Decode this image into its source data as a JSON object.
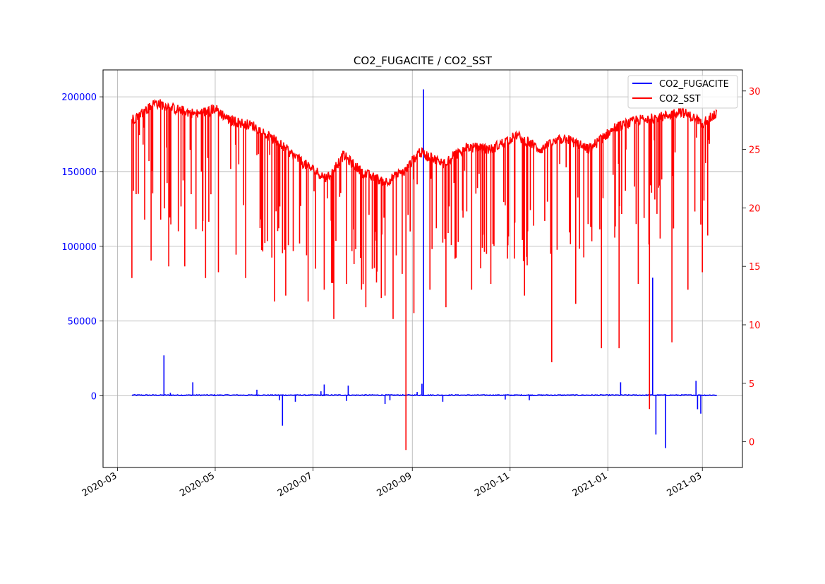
{
  "chart_data": {
    "type": "line",
    "title": "CO2_FUGACITE / CO2_SST",
    "xlabel": "",
    "ylabel_left": "",
    "ylabel_right": "",
    "grid": true,
    "legend_position": "top-right",
    "x_ticks": [
      "2020-03-01",
      "2020-05-01",
      "2020-07-01",
      "2020-09-01",
      "2020-11-01",
      "2021-01-01",
      "2021-03-01"
    ],
    "x_tick_labels": [
      "2020-03",
      "2020-05",
      "2020-07",
      "2020-09",
      "2020-11",
      "2021-01",
      "2021-03"
    ],
    "xlim": [
      "2020-02-21",
      "2021-03-26"
    ],
    "y_left": {
      "ticks": [
        0,
        50000,
        100000,
        150000,
        200000
      ],
      "tick_labels": [
        "0",
        "50000",
        "100000",
        "150000",
        "200000"
      ],
      "lim": [
        -48000,
        218000
      ],
      "color": "#0000ff"
    },
    "y_right": {
      "ticks": [
        0,
        5,
        10,
        15,
        20,
        25,
        30
      ],
      "tick_labels": [
        "0",
        "5",
        "10",
        "15",
        "20",
        "25",
        "30"
      ],
      "lim": [
        -2.2,
        31.8
      ],
      "color": "#ff0000"
    },
    "series": [
      {
        "name": "CO2_FUGACITE",
        "axis": "left",
        "color": "#0000ff",
        "baseline": 400,
        "start": "2020-03-10",
        "end": "2021-03-10",
        "spikes": [
          [
            "2020-03-30",
            27000
          ],
          [
            "2020-04-03",
            2000
          ],
          [
            "2020-04-17",
            9000
          ],
          [
            "2020-05-27",
            4000
          ],
          [
            "2020-06-10",
            -3000
          ],
          [
            "2020-06-12",
            -20000
          ],
          [
            "2020-06-20",
            -4000
          ],
          [
            "2020-07-06",
            3000
          ],
          [
            "2020-07-08",
            7500
          ],
          [
            "2020-07-22",
            -3500
          ],
          [
            "2020-07-23",
            6800
          ],
          [
            "2020-08-15",
            -5500
          ],
          [
            "2020-08-18",
            -3000
          ],
          [
            "2020-09-04",
            2500
          ],
          [
            "2020-09-07",
            8000
          ],
          [
            "2020-09-08",
            205000
          ],
          [
            "2020-09-20",
            -4000
          ],
          [
            "2020-10-29",
            -2500
          ],
          [
            "2020-11-13",
            -3000
          ],
          [
            "2021-01-09",
            9000
          ],
          [
            "2021-01-27",
            3500
          ],
          [
            "2021-01-29",
            79000
          ],
          [
            "2021-01-31",
            -26000
          ],
          [
            "2021-02-06",
            -35000
          ],
          [
            "2021-02-25",
            10000
          ],
          [
            "2021-02-26",
            -9000
          ],
          [
            "2021-02-28",
            -12000
          ]
        ]
      },
      {
        "name": "CO2_SST",
        "axis": "right",
        "color": "#ff0000",
        "start": "2020-03-10",
        "end": "2021-03-10",
        "trend": [
          [
            "2020-03-10",
            27.5
          ],
          [
            "2020-03-25",
            29.0
          ],
          [
            "2020-04-05",
            28.5
          ],
          [
            "2020-04-20",
            28.0
          ],
          [
            "2020-05-01",
            28.5
          ],
          [
            "2020-05-10",
            27.5
          ],
          [
            "2020-05-25",
            27.0
          ],
          [
            "2020-06-10",
            25.5
          ],
          [
            "2020-06-25",
            23.8
          ],
          [
            "2020-07-10",
            22.5
          ],
          [
            "2020-07-20",
            24.5
          ],
          [
            "2020-08-01",
            23.0
          ],
          [
            "2020-08-15",
            22.2
          ],
          [
            "2020-08-28",
            23.2
          ],
          [
            "2020-09-05",
            24.8
          ],
          [
            "2020-09-20",
            23.8
          ],
          [
            "2020-10-05",
            25.2
          ],
          [
            "2020-10-20",
            25.0
          ],
          [
            "2020-11-05",
            26.2
          ],
          [
            "2020-11-20",
            25.0
          ],
          [
            "2020-12-05",
            26.0
          ],
          [
            "2020-12-20",
            25.0
          ],
          [
            "2021-01-05",
            26.8
          ],
          [
            "2021-01-20",
            27.5
          ],
          [
            "2021-02-05",
            27.8
          ],
          [
            "2021-02-15",
            28.3
          ],
          [
            "2021-03-01",
            27.3
          ],
          [
            "2021-03-10",
            28.0
          ]
        ],
        "dips": [
          [
            "2020-03-10",
            14.0
          ],
          [
            "2020-03-18",
            19.0
          ],
          [
            "2020-03-22",
            15.5
          ],
          [
            "2020-03-28",
            19.0
          ],
          [
            "2020-04-02",
            15.0
          ],
          [
            "2020-04-08",
            18.0
          ],
          [
            "2020-04-12",
            15.0
          ],
          [
            "2020-04-25",
            14.0
          ],
          [
            "2020-05-03",
            14.5
          ],
          [
            "2020-05-14",
            16.0
          ],
          [
            "2020-05-20",
            14.0
          ],
          [
            "2020-06-01",
            17.0
          ],
          [
            "2020-06-07",
            12.0
          ],
          [
            "2020-06-14",
            12.5
          ],
          [
            "2020-06-28",
            12.0
          ],
          [
            "2020-07-08",
            13.0
          ],
          [
            "2020-07-14",
            10.5
          ],
          [
            "2020-07-22",
            13.5
          ],
          [
            "2020-08-03",
            11.5
          ],
          [
            "2020-08-15",
            12.5
          ],
          [
            "2020-08-20",
            10.5
          ],
          [
            "2020-08-28",
            -0.7
          ],
          [
            "2020-09-02",
            11.0
          ],
          [
            "2020-09-12",
            13.0
          ],
          [
            "2020-09-22",
            11.5
          ],
          [
            "2020-10-08",
            13.0
          ],
          [
            "2020-10-20",
            13.5
          ],
          [
            "2020-11-10",
            12.5
          ],
          [
            "2020-11-27",
            6.8
          ],
          [
            "2020-12-12",
            11.8
          ],
          [
            "2020-12-28",
            8.0
          ],
          [
            "2021-01-08",
            8.0
          ],
          [
            "2021-01-20",
            13.5
          ],
          [
            "2021-01-27",
            2.8
          ],
          [
            "2021-02-10",
            8.5
          ],
          [
            "2021-02-20",
            13.0
          ],
          [
            "2021-03-01",
            14.5
          ]
        ]
      }
    ]
  }
}
